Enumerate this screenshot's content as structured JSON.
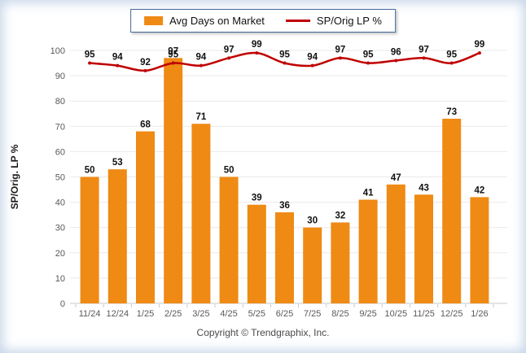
{
  "frame": {
    "copyright": "Copyright © Trendgraphix, Inc."
  },
  "chart_data": {
    "type": "bar+line",
    "title": "",
    "categories": [
      "11/24",
      "12/24",
      "1/25",
      "2/25",
      "3/25",
      "4/25",
      "5/25",
      "6/25",
      "7/25",
      "8/25",
      "9/25",
      "10/25",
      "11/25",
      "12/25",
      "1/26"
    ],
    "series": [
      {
        "name": "Avg Days on Market",
        "type": "bar",
        "color": "#EF8A15",
        "values": [
          50,
          53,
          68,
          97,
          71,
          50,
          39,
          36,
          30,
          32,
          41,
          47,
          43,
          73,
          42
        ]
      },
      {
        "name": "SP/Orig LP %",
        "type": "line",
        "color": "#C00000",
        "values": [
          95,
          94,
          92,
          95,
          94,
          97,
          99,
          95,
          94,
          97,
          95,
          96,
          97,
          95,
          99
        ]
      }
    ],
    "xlabel": "",
    "ylabel": "SP/Orig. LP %",
    "ylim": [
      0,
      100
    ],
    "ytick_step": 10,
    "grid": true,
    "legend_position": "top-center",
    "data_labels": true
  },
  "colors": {
    "bar": "#EF8A15",
    "line": "#C00000",
    "grid": "#e9e9e9",
    "axis": "#c9c9c9",
    "tick_text": "#595959",
    "data_label": "#111111",
    "legend_border": "#44699d"
  }
}
